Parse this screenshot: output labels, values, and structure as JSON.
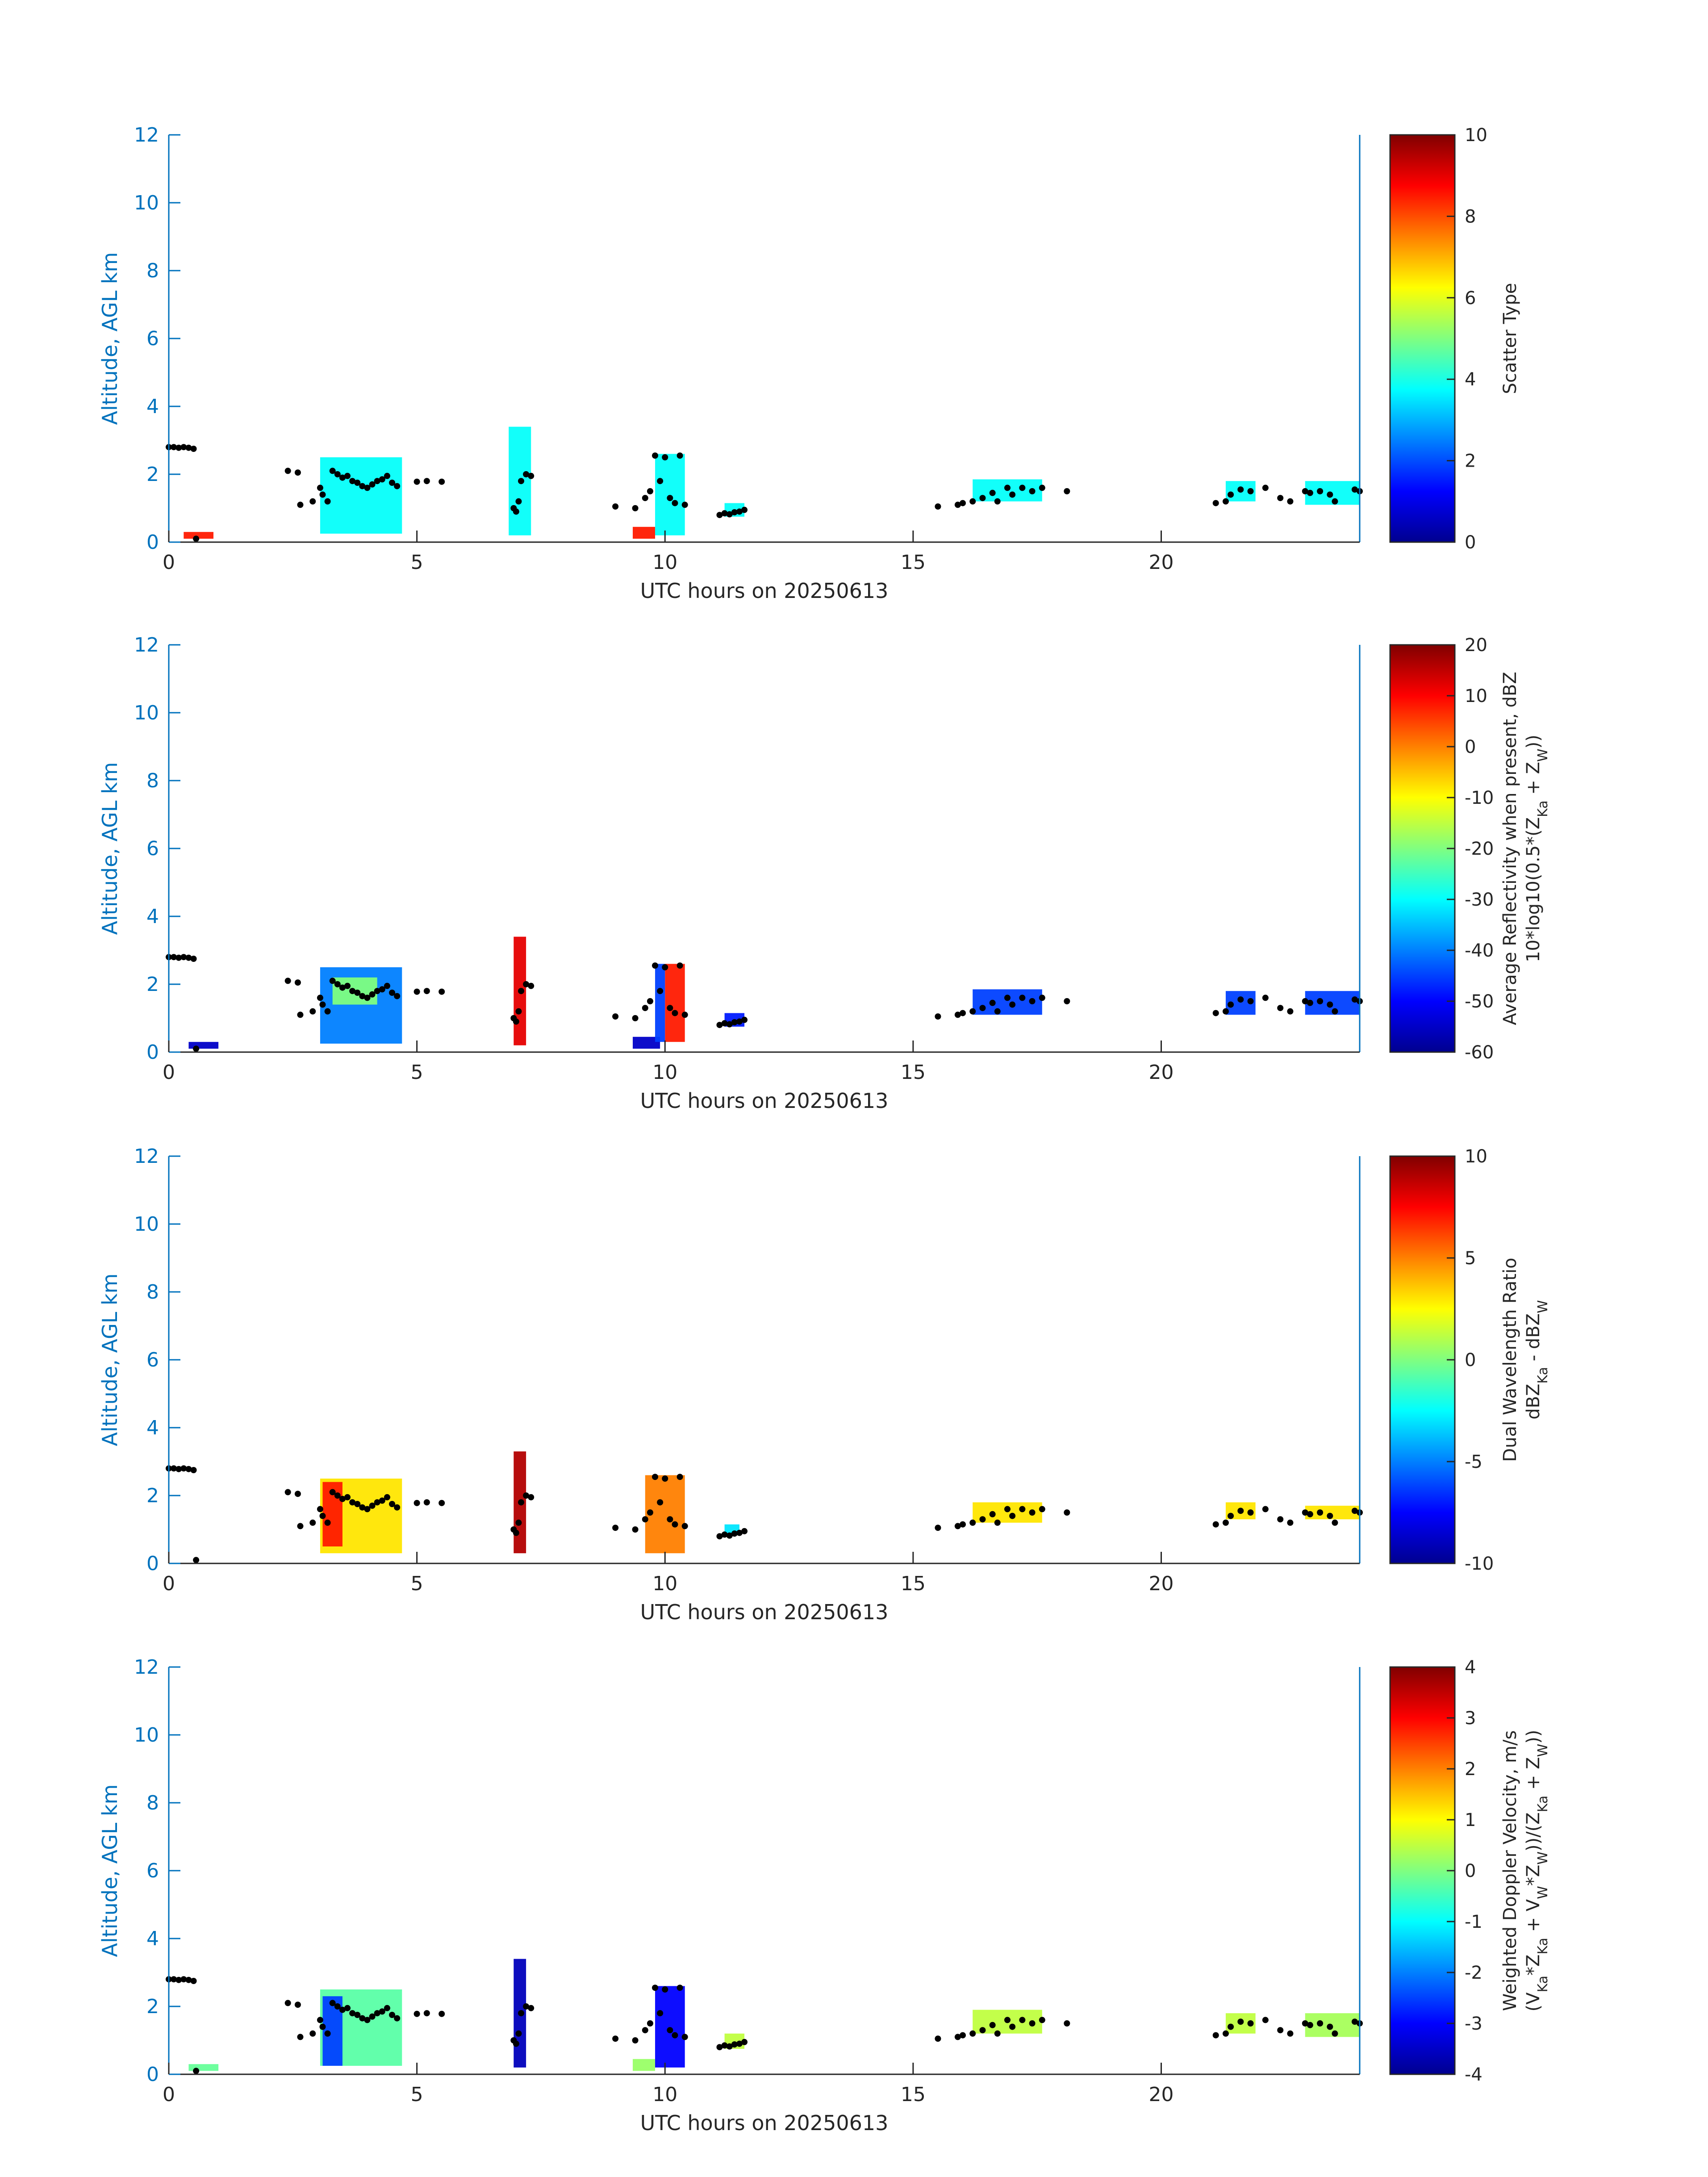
{
  "colors": {
    "axis_blue": "#0072bd",
    "text_dark": "#262626",
    "cluster_dot": "#000000",
    "colormap": [
      "#00008f",
      "#0000ff",
      "#0080ff",
      "#00ffff",
      "#80ff80",
      "#ffff00",
      "#ff8000",
      "#ff0000",
      "#800000"
    ]
  },
  "chart_data": [
    {
      "type": "heatmap",
      "panel": "scatter-type",
      "xlabel": "UTC hours on 20250613",
      "ylabel": "Altitude, AGL km",
      "xlim": [
        0,
        24
      ],
      "ylim": [
        0,
        12
      ],
      "xticks": [
        "0",
        "5",
        "10",
        "15",
        "20"
      ],
      "yticks": [
        "0",
        "2",
        "4",
        "6",
        "8",
        "10",
        "12"
      ],
      "colorbar": {
        "label_lines": [
          "Scatter Type"
        ],
        "range": [
          0,
          10
        ],
        "ticks": [
          "0",
          "2",
          "4",
          "6",
          "8",
          "10"
        ]
      },
      "regions": [
        {
          "x0": 0.3,
          "x1": 0.9,
          "y0": 0.1,
          "y1": 0.3,
          "value": 8.5
        },
        {
          "x0": 3.05,
          "x1": 4.7,
          "y0": 0.25,
          "y1": 2.5,
          "value": 3.8
        },
        {
          "x0": 6.85,
          "x1": 7.3,
          "y0": 0.2,
          "y1": 3.4,
          "value": 3.8
        },
        {
          "x0": 9.35,
          "x1": 9.8,
          "y0": 0.1,
          "y1": 0.45,
          "value": 8.5
        },
        {
          "x0": 9.8,
          "x1": 10.4,
          "y0": 0.2,
          "y1": 2.6,
          "value": 3.8
        },
        {
          "x0": 11.2,
          "x1": 11.6,
          "y0": 0.75,
          "y1": 1.15,
          "value": 3.8
        },
        {
          "x0": 16.2,
          "x1": 17.6,
          "y0": 1.2,
          "y1": 1.85,
          "value": 3.8
        },
        {
          "x0": 21.3,
          "x1": 21.9,
          "y0": 1.2,
          "y1": 1.8,
          "value": 3.8
        },
        {
          "x0": 22.9,
          "x1": 24.0,
          "y0": 1.1,
          "y1": 1.8,
          "value": 3.8
        }
      ]
    },
    {
      "type": "heatmap",
      "panel": "average-reflectivity",
      "xlabel": "UTC hours on 20250613",
      "ylabel": "Altitude, AGL km",
      "xlim": [
        0,
        24
      ],
      "ylim": [
        0,
        12
      ],
      "xticks": [
        "0",
        "5",
        "10",
        "15",
        "20"
      ],
      "yticks": [
        "0",
        "2",
        "4",
        "6",
        "8",
        "10",
        "12"
      ],
      "colorbar": {
        "label_lines": [
          "Average Reflectivity when present, dBZ",
          "10*log10(0.5*(Z_Ka + Z_W))"
        ],
        "range": [
          -60,
          20
        ],
        "ticks": [
          "-60",
          "-50",
          "-40",
          "-30",
          "-20",
          "-10",
          "0",
          "10",
          "20"
        ]
      },
      "regions": [
        {
          "x0": 0.4,
          "x1": 1.0,
          "y0": 0.1,
          "y1": 0.3,
          "value": -55
        },
        {
          "x0": 3.05,
          "x1": 4.7,
          "y0": 0.25,
          "y1": 2.5,
          "value": -40
        },
        {
          "x0": 3.3,
          "x1": 4.2,
          "y0": 1.4,
          "y1": 2.2,
          "value": -20
        },
        {
          "x0": 6.95,
          "x1": 7.2,
          "y0": 0.2,
          "y1": 3.4,
          "value": 12
        },
        {
          "x0": 9.35,
          "x1": 9.9,
          "y0": 0.1,
          "y1": 0.45,
          "value": -55
        },
        {
          "x0": 10.0,
          "x1": 10.4,
          "y0": 0.3,
          "y1": 2.6,
          "value": 8
        },
        {
          "x0": 9.8,
          "x1": 10.0,
          "y0": 0.3,
          "y1": 2.6,
          "value": -45
        },
        {
          "x0": 11.2,
          "x1": 11.6,
          "y0": 0.75,
          "y1": 1.15,
          "value": -48
        },
        {
          "x0": 16.2,
          "x1": 17.6,
          "y0": 1.1,
          "y1": 1.85,
          "value": -45
        },
        {
          "x0": 21.3,
          "x1": 21.9,
          "y0": 1.1,
          "y1": 1.8,
          "value": -45
        },
        {
          "x0": 22.9,
          "x1": 24.0,
          "y0": 1.1,
          "y1": 1.8,
          "value": -45
        }
      ]
    },
    {
      "type": "heatmap",
      "panel": "dual-wavelength-ratio",
      "xlabel": "UTC hours on 20250613",
      "ylabel": "Altitude, AGL km",
      "xlim": [
        0,
        24
      ],
      "ylim": [
        0,
        12
      ],
      "xticks": [
        "0",
        "5",
        "10",
        "15",
        "20"
      ],
      "yticks": [
        "0",
        "2",
        "4",
        "6",
        "8",
        "10",
        "12"
      ],
      "colorbar": {
        "label_lines": [
          "Dual Wavelength Ratio",
          "dBZ_Ka - dBZ_W"
        ],
        "range": [
          -10,
          10
        ],
        "ticks": [
          "-10",
          "-5",
          "0",
          "5",
          "10"
        ]
      },
      "regions": [
        {
          "x0": 3.05,
          "x1": 4.7,
          "y0": 0.3,
          "y1": 2.5,
          "value": 3
        },
        {
          "x0": 3.1,
          "x1": 3.5,
          "y0": 0.5,
          "y1": 2.4,
          "value": 7
        },
        {
          "x0": 6.95,
          "x1": 7.2,
          "y0": 0.3,
          "y1": 3.3,
          "value": 9
        },
        {
          "x0": 9.6,
          "x1": 10.4,
          "y0": 0.3,
          "y1": 2.6,
          "value": 5
        },
        {
          "x0": 11.2,
          "x1": 11.5,
          "y0": 0.85,
          "y1": 1.15,
          "value": -3
        },
        {
          "x0": 16.2,
          "x1": 17.6,
          "y0": 1.2,
          "y1": 1.8,
          "value": 3
        },
        {
          "x0": 21.3,
          "x1": 21.9,
          "y0": 1.3,
          "y1": 1.8,
          "value": 3
        },
        {
          "x0": 22.9,
          "x1": 24.0,
          "y0": 1.3,
          "y1": 1.7,
          "value": 3
        }
      ]
    },
    {
      "type": "heatmap",
      "panel": "weighted-doppler-velocity",
      "xlabel": "UTC hours on 20250613",
      "ylabel": "Altitude, AGL km",
      "xlim": [
        0,
        24
      ],
      "ylim": [
        0,
        12
      ],
      "xticks": [
        "0",
        "5",
        "10",
        "15",
        "20"
      ],
      "yticks": [
        "0",
        "2",
        "4",
        "6",
        "8",
        "10",
        "12"
      ],
      "colorbar": {
        "label_lines": [
          "Weighted Doppler Velocity, m/s",
          "(V_Ka*Z_Ka + V_W*Z_W))/(Z_Ka + Z_W))"
        ],
        "range": [
          -4,
          4
        ],
        "ticks": [
          "-4",
          "-3",
          "-2",
          "-1",
          "0",
          "1",
          "2",
          "3",
          "4"
        ]
      },
      "regions": [
        {
          "x0": 0.4,
          "x1": 1.0,
          "y0": 0.1,
          "y1": 0.3,
          "value": -0.2
        },
        {
          "x0": 3.05,
          "x1": 4.7,
          "y0": 0.25,
          "y1": 2.5,
          "value": -0.3
        },
        {
          "x0": 3.1,
          "x1": 3.5,
          "y0": 0.25,
          "y1": 2.3,
          "value": -2.5
        },
        {
          "x0": 6.95,
          "x1": 7.2,
          "y0": 0.2,
          "y1": 3.4,
          "value": -3.6
        },
        {
          "x0": 9.35,
          "x1": 9.8,
          "y0": 0.1,
          "y1": 0.45,
          "value": 0.2
        },
        {
          "x0": 9.8,
          "x1": 10.4,
          "y0": 0.2,
          "y1": 2.6,
          "value": -3.0
        },
        {
          "x0": 11.2,
          "x1": 11.6,
          "y0": 0.75,
          "y1": 1.2,
          "value": 0.5
        },
        {
          "x0": 16.2,
          "x1": 17.6,
          "y0": 1.2,
          "y1": 1.9,
          "value": 0.5
        },
        {
          "x0": 21.3,
          "x1": 21.9,
          "y0": 1.2,
          "y1": 1.8,
          "value": 0.5
        },
        {
          "x0": 22.9,
          "x1": 24.0,
          "y0": 1.1,
          "y1": 1.8,
          "value": 0.3
        }
      ]
    }
  ],
  "cloud_base_points": [
    [
      0.0,
      2.8
    ],
    [
      0.1,
      2.8
    ],
    [
      0.2,
      2.78
    ],
    [
      0.3,
      2.8
    ],
    [
      0.4,
      2.78
    ],
    [
      0.5,
      2.75
    ],
    [
      0.55,
      0.1
    ],
    [
      2.4,
      2.1
    ],
    [
      2.6,
      2.05
    ],
    [
      2.65,
      1.1
    ],
    [
      2.9,
      1.2
    ],
    [
      3.05,
      1.6
    ],
    [
      3.1,
      1.4
    ],
    [
      3.2,
      1.2
    ],
    [
      3.3,
      2.1
    ],
    [
      3.4,
      2.0
    ],
    [
      3.5,
      1.9
    ],
    [
      3.6,
      1.95
    ],
    [
      3.7,
      1.8
    ],
    [
      3.8,
      1.75
    ],
    [
      3.9,
      1.65
    ],
    [
      4.0,
      1.6
    ],
    [
      4.1,
      1.7
    ],
    [
      4.2,
      1.8
    ],
    [
      4.3,
      1.85
    ],
    [
      4.4,
      1.95
    ],
    [
      4.5,
      1.75
    ],
    [
      4.6,
      1.65
    ],
    [
      5.0,
      1.78
    ],
    [
      5.2,
      1.8
    ],
    [
      5.5,
      1.78
    ],
    [
      6.95,
      1.0
    ],
    [
      7.0,
      0.9
    ],
    [
      7.05,
      1.2
    ],
    [
      7.1,
      1.8
    ],
    [
      7.2,
      2.0
    ],
    [
      7.3,
      1.95
    ],
    [
      9.0,
      1.05
    ],
    [
      9.4,
      1.0
    ],
    [
      9.6,
      1.3
    ],
    [
      9.7,
      1.5
    ],
    [
      9.8,
      2.55
    ],
    [
      9.9,
      1.8
    ],
    [
      10.0,
      2.5
    ],
    [
      10.1,
      1.3
    ],
    [
      10.2,
      1.15
    ],
    [
      10.3,
      2.55
    ],
    [
      10.4,
      1.1
    ],
    [
      11.1,
      0.8
    ],
    [
      11.2,
      0.85
    ],
    [
      11.3,
      0.82
    ],
    [
      11.4,
      0.88
    ],
    [
      11.5,
      0.9
    ],
    [
      11.6,
      0.95
    ],
    [
      15.5,
      1.05
    ],
    [
      15.9,
      1.1
    ],
    [
      16.0,
      1.15
    ],
    [
      16.2,
      1.2
    ],
    [
      16.4,
      1.3
    ],
    [
      16.6,
      1.45
    ],
    [
      16.7,
      1.2
    ],
    [
      16.9,
      1.6
    ],
    [
      17.0,
      1.4
    ],
    [
      17.2,
      1.6
    ],
    [
      17.4,
      1.5
    ],
    [
      17.6,
      1.6
    ],
    [
      18.1,
      1.5
    ],
    [
      21.1,
      1.15
    ],
    [
      21.3,
      1.2
    ],
    [
      21.4,
      1.4
    ],
    [
      21.6,
      1.55
    ],
    [
      21.8,
      1.5
    ],
    [
      22.1,
      1.6
    ],
    [
      22.4,
      1.3
    ],
    [
      22.6,
      1.2
    ],
    [
      22.9,
      1.5
    ],
    [
      23.0,
      1.45
    ],
    [
      23.2,
      1.5
    ],
    [
      23.4,
      1.4
    ],
    [
      23.5,
      1.2
    ],
    [
      23.9,
      1.55
    ],
    [
      24.0,
      1.5
    ]
  ]
}
